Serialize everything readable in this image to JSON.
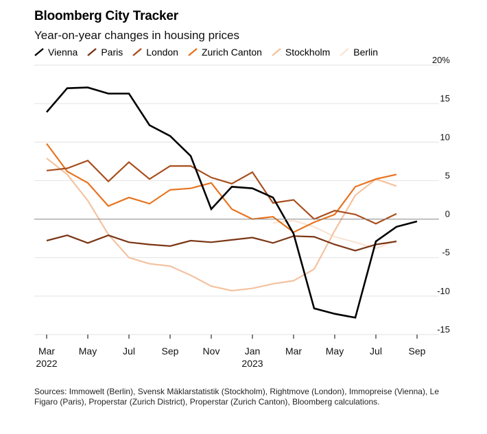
{
  "title": "Bloomberg City Tracker",
  "subtitle": "Year-on-year changes in housing prices",
  "source": "Sources: Immowelt (Berlin), Svensk Mäklarstatistik (Stockholm), Rightmove (London), Immopreise (Vienna), Le Figaro (Paris), Properstar (Zurich District), Properstar (Zurich Canton), Bloomberg calculations.",
  "chart_data": {
    "type": "line",
    "x_months": [
      "2022-03",
      "2022-04",
      "2022-05",
      "2022-06",
      "2022-07",
      "2022-08",
      "2022-09",
      "2022-10",
      "2022-11",
      "2022-12",
      "2023-01",
      "2023-02",
      "2023-03",
      "2023-04",
      "2023-05",
      "2023-06",
      "2023-07",
      "2023-08",
      "2023-09"
    ],
    "xlim": [
      "2022-03",
      "2023-09"
    ],
    "ylim": [
      -15,
      20
    ],
    "y_ticks": [
      20,
      15,
      10,
      5,
      0,
      -5,
      -10,
      -15
    ],
    "y_tick_labels": [
      "20%",
      "15",
      "10",
      "5",
      "0",
      "-5",
      "-10",
      "-15"
    ],
    "x_tick_labels": [
      {
        "month": "2022-03",
        "label": "Mar",
        "year": "2022"
      },
      {
        "month": "2022-05",
        "label": "May",
        "year": ""
      },
      {
        "month": "2022-07",
        "label": "Jul",
        "year": ""
      },
      {
        "month": "2022-09",
        "label": "Sep",
        "year": ""
      },
      {
        "month": "2022-11",
        "label": "Nov",
        "year": ""
      },
      {
        "month": "2023-01",
        "label": "Jan",
        "year": "2023"
      },
      {
        "month": "2023-03",
        "label": "Mar",
        "year": ""
      },
      {
        "month": "2023-05",
        "label": "May",
        "year": ""
      },
      {
        "month": "2023-07",
        "label": "Jul",
        "year": ""
      },
      {
        "month": "2023-09",
        "label": "Sep",
        "year": ""
      }
    ],
    "zero_line": true,
    "legend_position": "top-left",
    "series": [
      {
        "name": "Berlin",
        "color": "#f9e4d4",
        "values": [
          null,
          null,
          null,
          null,
          null,
          null,
          null,
          null,
          null,
          null,
          null,
          -0.5,
          -0.2,
          -1.0,
          -2.3,
          -3.0,
          -3.8,
          -2.8,
          null
        ]
      },
      {
        "name": "Stockholm",
        "color": "#f4c29f",
        "values": [
          7.9,
          5.8,
          2.4,
          -2.0,
          -5.0,
          -5.8,
          -6.1,
          -7.3,
          -8.7,
          -9.3,
          -9.0,
          -8.4,
          -8.0,
          -6.5,
          -1.5,
          3.1,
          5.2,
          4.3,
          null
        ]
      },
      {
        "name": "Zurich Canton",
        "color": "#e8731f",
        "values": [
          9.8,
          6.2,
          4.7,
          1.7,
          2.8,
          2.0,
          3.8,
          4.0,
          4.7,
          1.3,
          0.0,
          0.3,
          -1.7,
          -0.4,
          0.6,
          4.2,
          5.2,
          5.8,
          null
        ]
      },
      {
        "name": "London",
        "color": "#a84e1d",
        "values": [
          6.3,
          6.6,
          7.6,
          4.9,
          7.4,
          5.2,
          6.9,
          6.9,
          5.4,
          4.6,
          6.1,
          2.1,
          2.5,
          0.0,
          1.1,
          0.6,
          -0.6,
          0.7,
          null
        ]
      },
      {
        "name": "Paris",
        "color": "#7a3514",
        "values": [
          -2.8,
          -2.1,
          -3.1,
          -2.1,
          -3.0,
          -3.3,
          -3.5,
          -2.8,
          -3.0,
          -2.7,
          -2.4,
          -3.1,
          -2.2,
          -2.3,
          -3.3,
          -4.1,
          -3.3,
          -2.9,
          null
        ]
      },
      {
        "name": "Vienna",
        "color": "#000000",
        "values": [
          13.9,
          17.0,
          17.1,
          16.3,
          16.3,
          12.2,
          10.8,
          8.2,
          1.3,
          4.2,
          4.0,
          2.8,
          -1.9,
          -11.6,
          -12.3,
          -12.8,
          -2.9,
          -1.0,
          -0.3
        ]
      }
    ]
  },
  "legend_order": [
    "Vienna",
    "Paris",
    "London",
    "Zurich Canton",
    "Stockholm",
    "Berlin"
  ]
}
